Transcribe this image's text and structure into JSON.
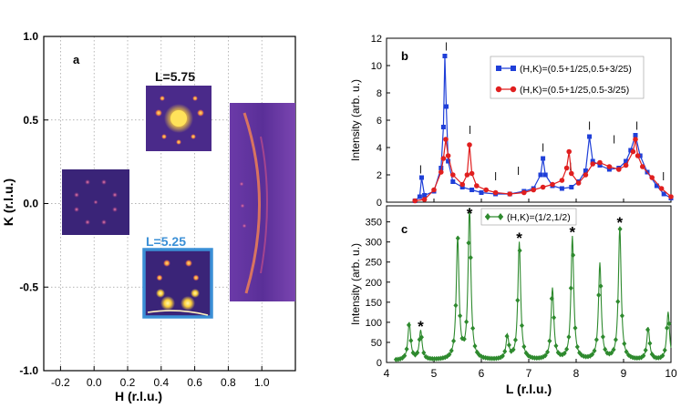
{
  "panel_a": {
    "label": "a",
    "xlabel": "H (r.l.u.)",
    "ylabel": "K (r.l.u.)",
    "inset_top_label": "L=5.75",
    "inset_bottom_label": "L=5.25",
    "colors": {
      "inset_bg": "#4a2a8a",
      "bright": "#ffd23a",
      "frame_bottom": "#3a8fd6"
    }
  },
  "panel_b": {
    "label": "b",
    "xlabel": "",
    "ylabel": "Intensity (arb. u.)",
    "legend": [
      "(H,K)=(0.5+1/25,0.5+3/25)",
      "(H,K)=(0.5+1/25,0.5-3/25)"
    ]
  },
  "panel_c": {
    "label": "c",
    "xlabel": "L (r.l.u.)",
    "ylabel": "Intensity (arb. u.)",
    "legend": [
      "(H,K)=(1/2,1/2)"
    ]
  },
  "chart_data": [
    {
      "type": "heatmap",
      "panel": "a",
      "xlim": [
        -0.3,
        1.2
      ],
      "ylim": [
        -1.0,
        1.0
      ],
      "xticks": [
        -0.2,
        0.0,
        0.2,
        0.4,
        0.6,
        0.8,
        1.0
      ],
      "xtick_labels": [
        "-0.2",
        "0.0",
        "0.2",
        "0.4",
        "0.6",
        "0.8",
        "1.0"
      ],
      "yticks": [
        -1.0,
        -0.5,
        0.0,
        0.5,
        1.0
      ],
      "ytick_labels": [
        "-1.0",
        "-0.5",
        "0.0",
        "0.5",
        "1.0"
      ],
      "grid": true
    },
    {
      "type": "line",
      "panel": "b",
      "xlim": [
        4,
        10
      ],
      "ylim": [
        0,
        12
      ],
      "yticks": [
        0,
        2,
        4,
        6,
        8,
        10,
        12
      ],
      "ytick_labels": [
        "0",
        "2",
        "4",
        "6",
        "8",
        "10",
        "12"
      ],
      "series": [
        {
          "name": "(H,K)=(0.5+1/25,0.5+3/25)",
          "color": "#1f3fd8",
          "marker": "square",
          "x": [
            4.6,
            4.7,
            4.74,
            4.8,
            5.0,
            5.15,
            5.2,
            5.23,
            5.26,
            5.3,
            5.4,
            5.6,
            5.8,
            6.0,
            6.3,
            6.6,
            6.9,
            7.1,
            7.25,
            7.3,
            7.35,
            7.5,
            7.7,
            7.9,
            8.05,
            8.2,
            8.28,
            8.35,
            8.5,
            8.7,
            8.9,
            9.05,
            9.15,
            9.25,
            9.35,
            9.5,
            9.7,
            9.85,
            10.0
          ],
          "y": [
            0.1,
            0.4,
            1.8,
            0.5,
            0.8,
            2.5,
            5.5,
            10.7,
            7.0,
            3.0,
            1.5,
            1.1,
            0.9,
            0.7,
            0.6,
            0.6,
            0.8,
            1.0,
            2.0,
            3.2,
            2.0,
            1.2,
            1.0,
            1.1,
            1.5,
            2.3,
            4.8,
            3.0,
            2.7,
            2.4,
            2.5,
            3.0,
            3.8,
            4.9,
            3.4,
            2.2,
            1.2,
            0.6,
            0.3
          ]
        },
        {
          "name": "(H,K)=(0.5+1/25,0.5-3/25)",
          "color": "#e01f1f",
          "marker": "circle",
          "x": [
            4.6,
            4.8,
            5.0,
            5.15,
            5.2,
            5.25,
            5.3,
            5.4,
            5.6,
            5.7,
            5.75,
            5.8,
            5.9,
            6.1,
            6.3,
            6.6,
            6.9,
            7.1,
            7.3,
            7.5,
            7.7,
            7.8,
            7.85,
            7.9,
            8.05,
            8.2,
            8.35,
            8.5,
            8.7,
            8.9,
            9.05,
            9.2,
            9.25,
            9.3,
            9.4,
            9.6,
            9.8,
            10.0
          ],
          "y": [
            0.1,
            0.2,
            0.9,
            2.2,
            3.2,
            4.6,
            3.4,
            2.0,
            1.3,
            2.0,
            4.2,
            2.1,
            1.2,
            0.9,
            0.7,
            0.6,
            0.7,
            0.9,
            1.1,
            1.3,
            1.6,
            2.5,
            3.7,
            2.1,
            1.4,
            2.0,
            2.8,
            2.9,
            2.6,
            2.4,
            2.7,
            3.7,
            4.6,
            3.4,
            2.6,
            1.8,
            1.0,
            0.4
          ]
        }
      ]
    },
    {
      "type": "line",
      "panel": "c",
      "xlim": [
        4,
        10
      ],
      "ylim": [
        0,
        390
      ],
      "xticks": [
        4,
        5,
        6,
        7,
        8,
        9,
        10
      ],
      "xtick_labels": [
        "4",
        "5",
        "6",
        "7",
        "8",
        "9",
        "10"
      ],
      "yticks": [
        0,
        50,
        100,
        150,
        200,
        250,
        300,
        350
      ],
      "ytick_labels": [
        "0",
        "50",
        "100",
        "150",
        "200",
        "250",
        "300",
        "350"
      ],
      "series": [
        {
          "name": "(H,K)=(1/2,1/2)",
          "color": "#2e8a2e",
          "marker": "diamond",
          "peaks_x": [
            4.48,
            4.72,
            5.5,
            5.75,
            6.55,
            6.8,
            7.5,
            7.92,
            8.5,
            8.92,
            9.52,
            9.94
          ],
          "peaks_y": [
            93,
            73,
            302,
            378,
            58,
            293,
            178,
            307,
            240,
            331,
            80,
            120
          ],
          "peak_width": 0.035,
          "baseline": 5
        }
      ]
    }
  ]
}
